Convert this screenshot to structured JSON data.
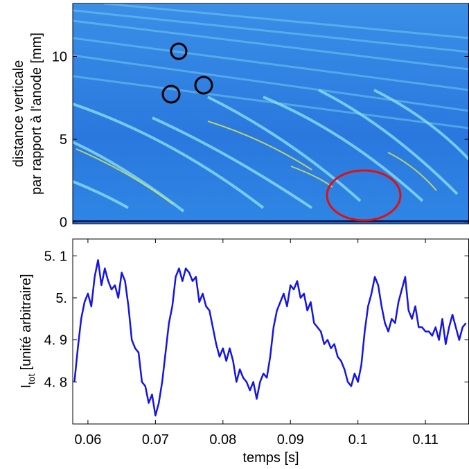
{
  "chart_data": [
    {
      "type": "image",
      "ylabel": [
        "distance verticale",
        "par rapport à l'anode [mm]"
      ],
      "ylim": [
        -0.1,
        13.2
      ],
      "yticks": [
        0,
        5,
        10
      ]
    },
    {
      "type": "line",
      "ylabel": [
        "I",
        "tot",
        "[unité arbitraire]"
      ],
      "xlabel": "temps [s]",
      "color": "#1414e6",
      "xlim": [
        0.05775,
        0.1164
      ],
      "xticks": [
        0.06,
        0.07,
        0.08,
        0.09,
        0.1,
        0.11
      ],
      "ylim": [
        4.7,
        5.14
      ],
      "yticks": [
        {
          "value": 4.8,
          "label": "4. 8"
        },
        {
          "value": 4.9,
          "label": "4. 9"
        },
        {
          "value": 5.0,
          "label": "5."
        },
        {
          "value": 5.1,
          "label": "5. 1"
        }
      ],
      "x": [
        0.058,
        0.0585,
        0.059,
        0.0595,
        0.06,
        0.0605,
        0.061,
        0.0615,
        0.062,
        0.0625,
        0.063,
        0.0635,
        0.064,
        0.0645,
        0.065,
        0.0655,
        0.066,
        0.0665,
        0.067,
        0.0675,
        0.068,
        0.0685,
        0.069,
        0.0695,
        0.07,
        0.0705,
        0.071,
        0.0715,
        0.072,
        0.0725,
        0.073,
        0.0735,
        0.074,
        0.0745,
        0.075,
        0.0755,
        0.076,
        0.0765,
        0.077,
        0.0775,
        0.078,
        0.0785,
        0.079,
        0.0795,
        0.08,
        0.0805,
        0.081,
        0.0815,
        0.082,
        0.0825,
        0.083,
        0.0835,
        0.084,
        0.0845,
        0.085,
        0.0855,
        0.086,
        0.0865,
        0.087,
        0.0875,
        0.088,
        0.0885,
        0.089,
        0.0895,
        0.09,
        0.0905,
        0.091,
        0.0915,
        0.092,
        0.0925,
        0.093,
        0.0935,
        0.094,
        0.0945,
        0.095,
        0.0955,
        0.096,
        0.0965,
        0.097,
        0.0975,
        0.098,
        0.0985,
        0.099,
        0.0995,
        0.1,
        0.1005,
        0.101,
        0.1015,
        0.102,
        0.1025,
        0.103,
        0.1035,
        0.104,
        0.1045,
        0.105,
        0.1055,
        0.106,
        0.1065,
        0.107,
        0.1075,
        0.108,
        0.1085,
        0.109,
        0.1095,
        0.11,
        0.1105,
        0.111,
        0.1115,
        0.112,
        0.1125,
        0.113,
        0.1135,
        0.114,
        0.1145,
        0.115,
        0.1155,
        0.116
      ],
      "values": [
        4.8,
        4.88,
        4.95,
        4.99,
        5.01,
        4.98,
        5.05,
        5.09,
        5.03,
        5.07,
        5.04,
        5.02,
        5.03,
        5.0,
        5.06,
        5.04,
        4.98,
        4.9,
        4.88,
        4.87,
        4.8,
        4.79,
        4.75,
        4.77,
        4.72,
        4.75,
        4.8,
        4.87,
        4.94,
        4.98,
        5.05,
        5.07,
        5.04,
        5.07,
        5.06,
        5.04,
        5.05,
        4.99,
        5.01,
        4.98,
        4.97,
        4.93,
        4.89,
        4.86,
        4.88,
        4.85,
        4.88,
        4.85,
        4.8,
        4.83,
        4.81,
        4.8,
        4.78,
        4.8,
        4.76,
        4.8,
        4.82,
        4.81,
        4.86,
        4.93,
        4.97,
        4.99,
        5.01,
        4.98,
        5.03,
        5.02,
        5.04,
        5.0,
        5.01,
        4.97,
        4.99,
        4.94,
        4.93,
        4.92,
        4.89,
        4.9,
        4.88,
        4.89,
        4.86,
        4.85,
        4.83,
        4.8,
        4.79,
        4.82,
        4.8,
        4.84,
        4.92,
        4.98,
        5.01,
        5.05,
        5.03,
        4.98,
        4.94,
        4.92,
        4.95,
        4.94,
        4.99,
        5.02,
        5.05,
        4.97,
        4.95,
        4.98,
        4.93,
        4.93,
        4.92,
        4.92,
        4.91,
        4.93,
        4.9,
        4.95,
        4.89,
        4.93,
        4.96,
        4.93,
        4.9,
        4.93,
        4.94
      ]
    }
  ]
}
